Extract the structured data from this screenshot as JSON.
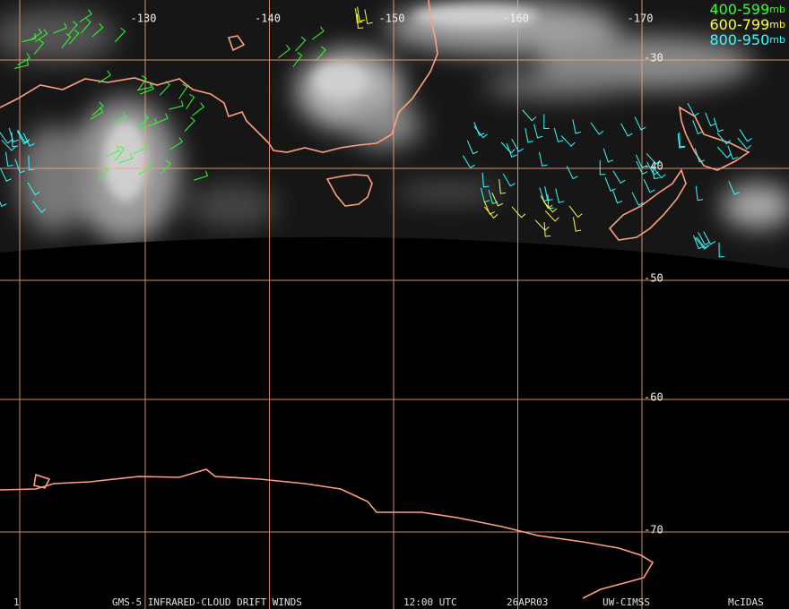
{
  "longitude_labels": [
    "-130",
    "-140",
    "-150",
    "-160",
    "-170"
  ],
  "latitude_labels": [
    "-30",
    "-40",
    "-50",
    "-60",
    "-70"
  ],
  "legend": [
    {
      "label": "400-599",
      "unit": "mb",
      "color": "#33ff33"
    },
    {
      "label": "600-799",
      "unit": "mb",
      "color": "#ffff33"
    },
    {
      "label": "800-950",
      "unit": "mb",
      "color": "#33ffff"
    }
  ],
  "footer": {
    "frame": "1",
    "title": "GMS-5 INFRARED-CLOUD DRIFT WINDS",
    "time": "12:00 UTC",
    "date": "26APR03",
    "source": "UW-CIMSS",
    "software": "McIDAS"
  }
}
